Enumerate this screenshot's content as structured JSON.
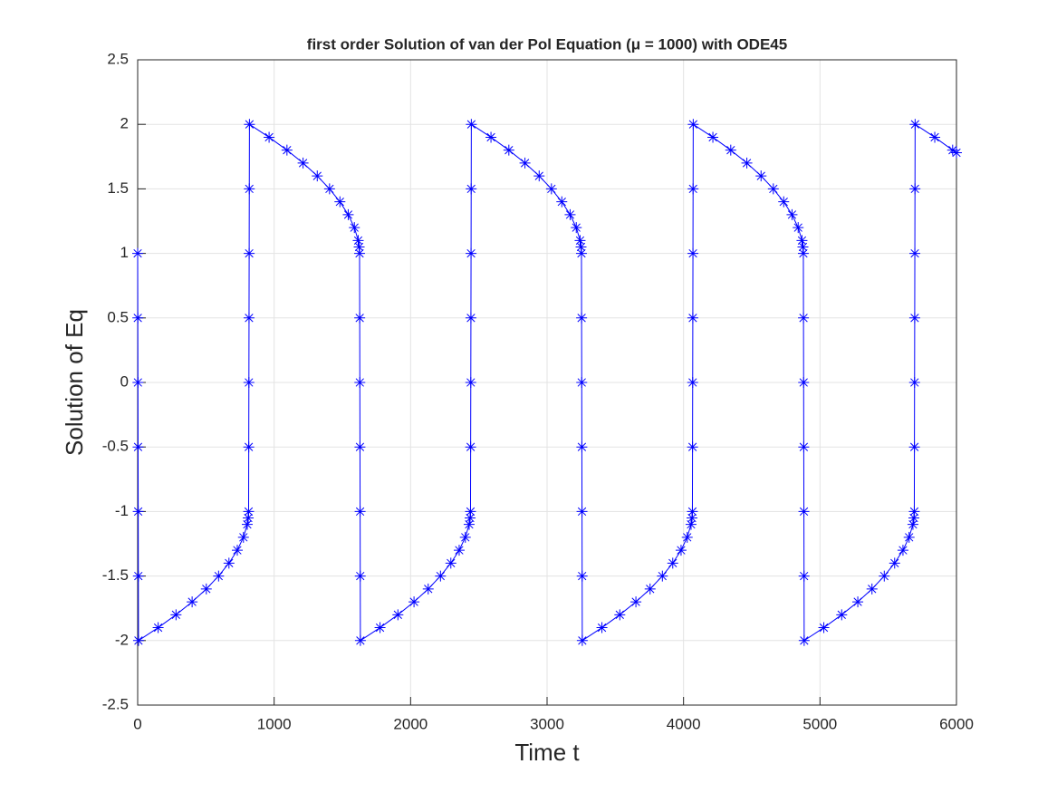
{
  "chart_data": {
    "type": "line",
    "title": "first order Solution of van der Pol Equation (μ = 1000) with ODE45",
    "x_label": "Time t",
    "y_label": "Solution of Eq",
    "x": [
      0,
      1,
      2,
      3,
      4,
      5,
      6,
      150,
      281,
      399,
      503,
      593,
      669,
      730,
      775,
      803,
      810,
      813,
      814,
      815,
      816,
      817,
      818,
      819,
      963,
      1094,
      1212,
      1316,
      1406,
      1482,
      1543,
      1588,
      1616,
      1623,
      1626,
      1627,
      1628,
      1629,
      1630,
      1631,
      1632,
      1776,
      1907,
      2025,
      2129,
      2219,
      2295,
      2356,
      2401,
      2429,
      2436,
      2439,
      2440,
      2441,
      2442,
      2443,
      2444,
      2445,
      2589,
      2720,
      2838,
      2942,
      3032,
      3108,
      3169,
      3214,
      3242,
      3249,
      3252,
      3253,
      3254,
      3255,
      3256,
      3257,
      3258,
      3402,
      3533,
      3651,
      3755,
      3845,
      3921,
      3982,
      4027,
      4055,
      4062,
      4065,
      4066,
      4067,
      4068,
      4069,
      4070,
      4071,
      4215,
      4346,
      4464,
      4568,
      4658,
      4734,
      4795,
      4840,
      4868,
      4875,
      4878,
      4879,
      4880,
      4881,
      4882,
      4883,
      4884,
      5028,
      5159,
      5277,
      5381,
      5471,
      5547,
      5608,
      5653,
      5681,
      5688,
      5691,
      5692,
      5693,
      5694,
      5695,
      5696,
      5697,
      5841,
      5972,
      6000
    ],
    "series": [
      {
        "color": "#0000ff",
        "values": [
          1,
          0.5,
          0,
          -0.5,
          -1,
          -1.5,
          -2,
          -1.9,
          -1.8,
          -1.7,
          -1.6,
          -1.5,
          -1.4,
          -1.3,
          -1.2,
          -1.1,
          -1.05,
          -1,
          -0.5,
          0,
          0.5,
          1,
          1.5,
          2,
          1.9,
          1.8,
          1.7,
          1.6,
          1.5,
          1.4,
          1.3,
          1.2,
          1.1,
          1.05,
          1,
          0.5,
          0,
          -0.5,
          -1,
          -1.5,
          -2,
          -1.9,
          -1.8,
          -1.7,
          -1.6,
          -1.5,
          -1.4,
          -1.3,
          -1.2,
          -1.1,
          -1.05,
          -1,
          -0.5,
          0,
          0.5,
          1,
          1.5,
          2,
          1.9,
          1.8,
          1.7,
          1.6,
          1.5,
          1.4,
          1.3,
          1.2,
          1.1,
          1.05,
          1,
          0.5,
          0,
          -0.5,
          -1,
          -1.5,
          -2,
          -1.9,
          -1.8,
          -1.7,
          -1.6,
          -1.5,
          -1.4,
          -1.3,
          -1.2,
          -1.1,
          -1.05,
          -1,
          -0.5,
          0,
          0.5,
          1,
          1.5,
          2,
          1.9,
          1.8,
          1.7,
          1.6,
          1.5,
          1.4,
          1.3,
          1.2,
          1.1,
          1.05,
          1,
          0.5,
          0,
          -0.5,
          -1,
          -1.5,
          -2,
          -1.9,
          -1.8,
          -1.7,
          -1.6,
          -1.5,
          -1.4,
          -1.3,
          -1.2,
          -1.1,
          -1.05,
          -1,
          -0.5,
          0,
          0.5,
          1,
          1.5,
          2,
          1.9,
          1.8,
          1.78
        ]
      }
    ],
    "xlim": [
      0,
      6000
    ],
    "xticks": [
      0,
      1000,
      2000,
      3000,
      4000,
      5000,
      6000
    ],
    "ylim": [
      -2.5,
      2.5
    ],
    "yticks": [
      -2.5,
      -2,
      -1.5,
      -1,
      -0.5,
      0,
      0.5,
      1,
      1.5,
      2,
      2.5
    ],
    "grid": true,
    "marker": "asterisk"
  }
}
